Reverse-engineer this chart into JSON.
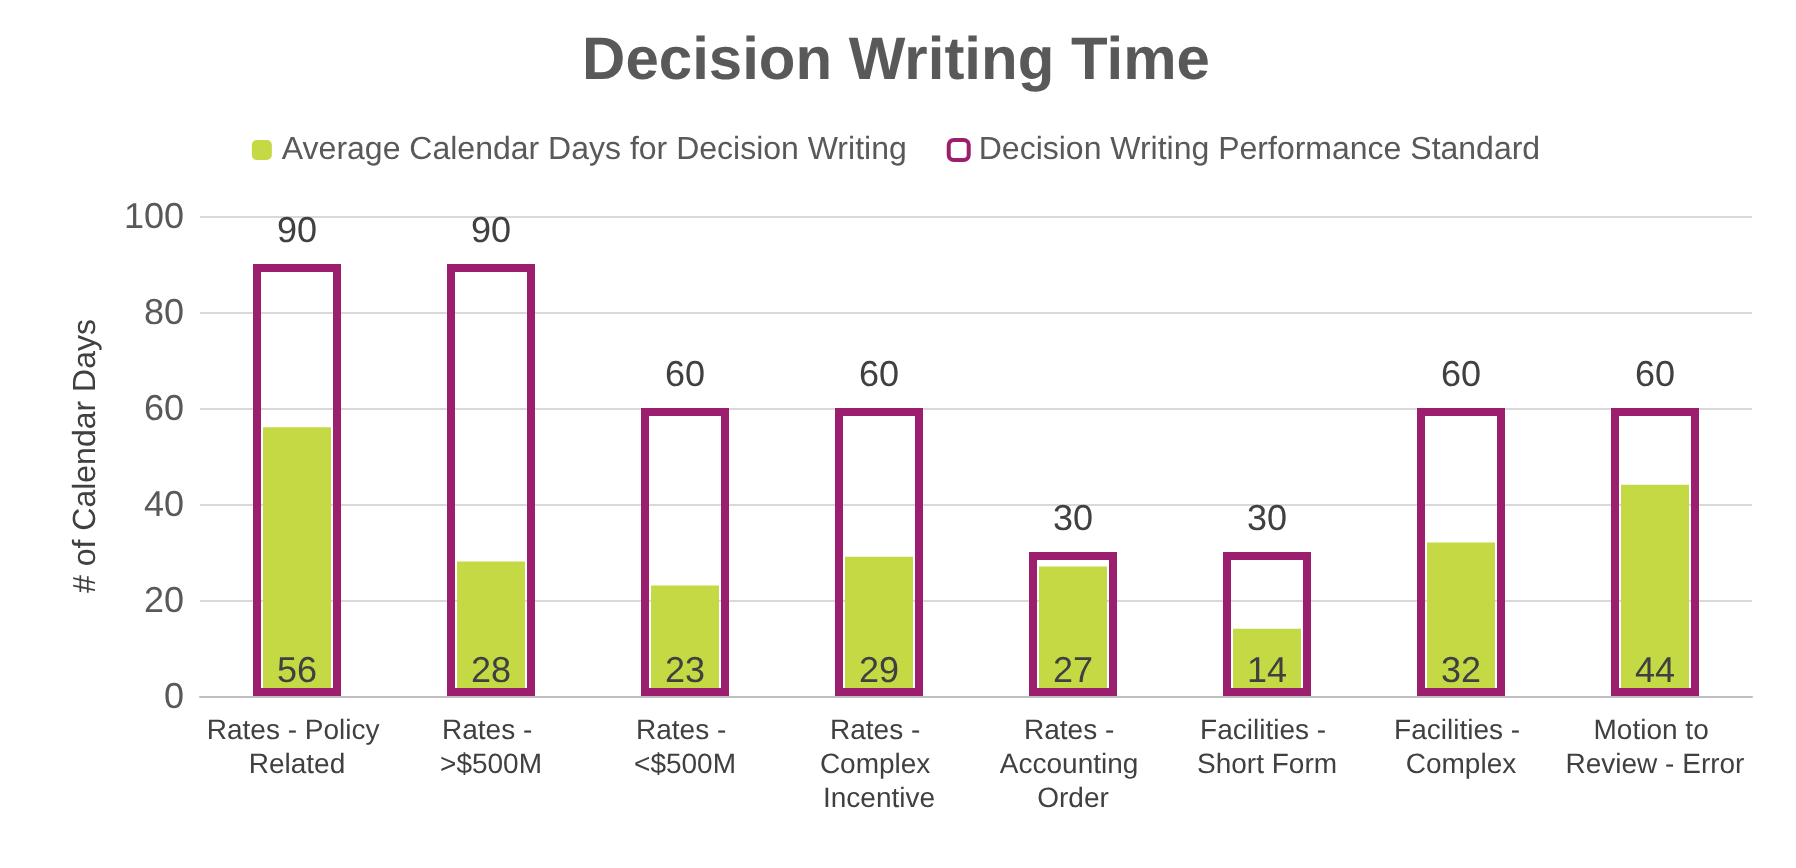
{
  "chart_data": {
    "type": "bar",
    "title": "Decision Writing Time",
    "ylabel": "# of Calendar Days",
    "categories": [
      "Rates - Policy Related",
      "Rates - >$500M",
      "Rates - <$500M",
      "Rates - Complex Incentive",
      "Rates - Accounting Order",
      "Facilities - Short Form",
      "Facilities - Complex",
      "Motion to Review - Error"
    ],
    "series": [
      {
        "name": "Average Calendar Days for Decision Writing",
        "color": "#c5d945",
        "values": [
          56,
          28,
          23,
          29,
          27,
          14,
          32,
          44
        ]
      },
      {
        "name": "Decision Writing Performance Standard",
        "color": "#9b1f6e",
        "values": [
          90,
          90,
          60,
          60,
          30,
          30,
          60,
          60
        ]
      }
    ],
    "ylim": [
      0,
      100
    ],
    "yticks": [
      0,
      20,
      40,
      60,
      80,
      100
    ],
    "grid": "y",
    "legend": "top",
    "data_labels": true
  }
}
